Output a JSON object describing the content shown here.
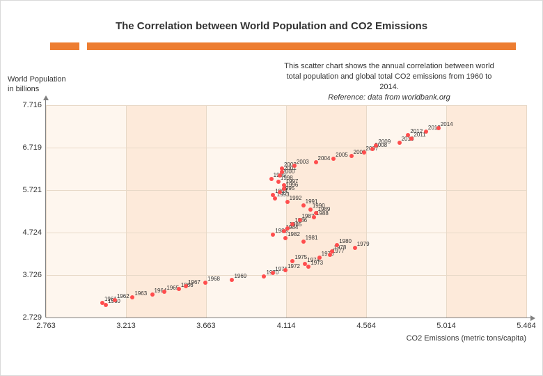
{
  "title": "The Correlation between World Population and CO2 Emissions",
  "subtitle_l1": "This scatter chart shows the annual correlation between world",
  "subtitle_l2": "total population and global total CO2 emissions from 1960 to",
  "subtitle_l3": "2014.",
  "subtitle_ref": "Reference: data from worldbank.org",
  "ylabel_l1": "World Population",
  "ylabel_l2": "in billions",
  "xlabel": "CO2 Emissions (metric tons/capita)",
  "chart": {
    "type": "scatter",
    "xlim": [
      2.763,
      5.464
    ],
    "xticks": [
      2.763,
      3.213,
      3.663,
      4.114,
      4.564,
      5.014,
      5.464
    ],
    "ylim": [
      2.729,
      7.716
    ],
    "yticks": [
      2.729,
      3.726,
      4.724,
      5.721,
      6.719,
      7.716
    ],
    "band_color_dark": "#fdeada",
    "band_color_light": "#fef6ee",
    "grid_color": "#e8d9c8",
    "axis_color": "#808080",
    "orange": "#ed7d31",
    "marker_color": "#ff4d4d",
    "marker_size": 6,
    "label_fontsize": 8,
    "background": "#ffffff",
    "points": [
      {
        "year": 1960,
        "x": 3.1,
        "y": 3.03
      },
      {
        "year": 1961,
        "x": 3.08,
        "y": 3.08
      },
      {
        "year": 1962,
        "x": 3.15,
        "y": 3.13
      },
      {
        "year": 1963,
        "x": 3.25,
        "y": 3.2
      },
      {
        "year": 1964,
        "x": 3.36,
        "y": 3.27
      },
      {
        "year": 1965,
        "x": 3.43,
        "y": 3.33
      },
      {
        "year": 1966,
        "x": 3.51,
        "y": 3.4
      },
      {
        "year": 1967,
        "x": 3.55,
        "y": 3.47
      },
      {
        "year": 1968,
        "x": 3.66,
        "y": 3.54
      },
      {
        "year": 1969,
        "x": 3.81,
        "y": 3.61
      },
      {
        "year": 1970,
        "x": 3.99,
        "y": 3.69
      },
      {
        "year": 1971,
        "x": 4.04,
        "y": 3.77
      },
      {
        "year": 1972,
        "x": 4.11,
        "y": 3.84
      },
      {
        "year": 1973,
        "x": 4.24,
        "y": 3.92
      },
      {
        "year": 1974,
        "x": 4.22,
        "y": 3.99
      },
      {
        "year": 1975,
        "x": 4.15,
        "y": 4.06
      },
      {
        "year": 1976,
        "x": 4.3,
        "y": 4.13
      },
      {
        "year": 1977,
        "x": 4.36,
        "y": 4.2
      },
      {
        "year": 1978,
        "x": 4.37,
        "y": 4.28
      },
      {
        "year": 1979,
        "x": 4.5,
        "y": 4.36
      },
      {
        "year": 1980,
        "x": 4.4,
        "y": 4.43
      },
      {
        "year": 1981,
        "x": 4.21,
        "y": 4.51
      },
      {
        "year": 1982,
        "x": 4.11,
        "y": 4.59
      },
      {
        "year": 1983,
        "x": 4.04,
        "y": 4.67
      },
      {
        "year": 1984,
        "x": 4.1,
        "y": 4.75
      },
      {
        "year": 1985,
        "x": 4.12,
        "y": 4.83
      },
      {
        "year": 1986,
        "x": 4.15,
        "y": 4.92
      },
      {
        "year": 1987,
        "x": 4.19,
        "y": 5.01
      },
      {
        "year": 1988,
        "x": 4.27,
        "y": 5.09
      },
      {
        "year": 1989,
        "x": 4.28,
        "y": 5.18
      },
      {
        "year": 1990,
        "x": 4.25,
        "y": 5.27
      },
      {
        "year": 1991,
        "x": 4.21,
        "y": 5.36
      },
      {
        "year": 1992,
        "x": 4.12,
        "y": 5.44
      },
      {
        "year": 1993,
        "x": 4.05,
        "y": 5.52
      },
      {
        "year": 1994,
        "x": 4.04,
        "y": 5.6
      },
      {
        "year": 1995,
        "x": 4.08,
        "y": 5.68
      },
      {
        "year": 1996,
        "x": 4.1,
        "y": 5.76
      },
      {
        "year": 1997,
        "x": 4.1,
        "y": 5.84
      },
      {
        "year": 1998,
        "x": 4.07,
        "y": 5.91
      },
      {
        "year": 1999,
        "x": 4.03,
        "y": 5.99
      },
      {
        "year": 2000,
        "x": 4.08,
        "y": 6.07
      },
      {
        "year": 2001,
        "x": 4.09,
        "y": 6.14
      },
      {
        "year": 2002,
        "x": 4.09,
        "y": 6.22
      },
      {
        "year": 2003,
        "x": 4.16,
        "y": 6.3
      },
      {
        "year": 2004,
        "x": 4.28,
        "y": 6.37
      },
      {
        "year": 2005,
        "x": 4.38,
        "y": 6.45
      },
      {
        "year": 2006,
        "x": 4.48,
        "y": 6.53
      },
      {
        "year": 2007,
        "x": 4.55,
        "y": 6.61
      },
      {
        "year": 2008,
        "x": 4.6,
        "y": 6.68
      },
      {
        "year": 2009,
        "x": 4.62,
        "y": 6.76
      },
      {
        "year": 2010,
        "x": 4.75,
        "y": 6.84
      },
      {
        "year": 2011,
        "x": 4.82,
        "y": 6.93
      },
      {
        "year": 2012,
        "x": 4.8,
        "y": 7.01
      },
      {
        "year": 2013,
        "x": 4.9,
        "y": 7.09
      },
      {
        "year": 2014,
        "x": 4.97,
        "y": 7.18
      }
    ]
  }
}
